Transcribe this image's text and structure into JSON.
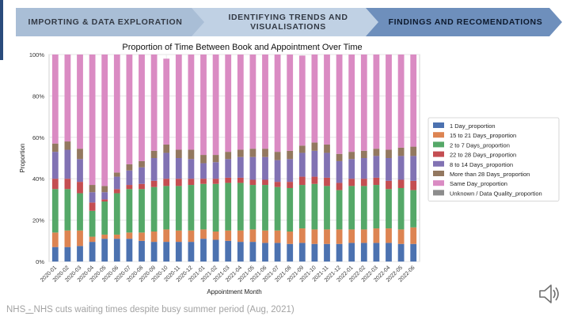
{
  "nav": {
    "steps": [
      "IMPORTING & DATA EXPLORATION",
      "IDENTIFYING TRENDS AND VISUALISATIONS",
      "FINDINGS AND RECOMENDATIONS"
    ]
  },
  "source": {
    "prefix": "NHS",
    "separator": " - ",
    "text": "NHS cuts waiting times despite busy summer period (Aug, 2021)"
  },
  "icons": {
    "speaker": "speaker-icon"
  },
  "chart_data": {
    "type": "bar",
    "stacked": true,
    "title": "Proportion of Time Between Book and Appointment Over Time",
    "xlabel": "Appointment Month",
    "ylabel": "Proportion",
    "ylim": [
      0,
      100
    ],
    "yticks": [
      "0%",
      "20%",
      "40%",
      "60%",
      "80%",
      "100%"
    ],
    "grid": true,
    "legend_position": "right",
    "categories": [
      "2020-01",
      "2020-02",
      "2020-03",
      "2020-04",
      "2020-05",
      "2020-06",
      "2020-07",
      "2020-08",
      "2020-09",
      "2020-10",
      "2020-11",
      "2020-12",
      "2021-01",
      "2021-02",
      "2021-03",
      "2021-04",
      "2021-05",
      "2021-06",
      "2021-07",
      "2021-08",
      "2021-09",
      "2021-10",
      "2021-11",
      "2021-12",
      "2022-01",
      "2022-02",
      "2022-03",
      "2022-04",
      "2022-05",
      "2022-06"
    ],
    "series": [
      {
        "name": "1 Day_proportion",
        "color": "#4c72b0",
        "values": [
          7,
          7,
          7.5,
          9.5,
          11,
          11,
          11,
          10,
          9.5,
          9.5,
          9.5,
          9.5,
          11,
          10.5,
          10,
          9.5,
          9.5,
          9,
          9,
          8.5,
          9,
          8.5,
          8.5,
          8.5,
          9,
          9,
          9,
          9,
          8.5,
          8.5
        ]
      },
      {
        "name": "15  to 21 Days_proportion",
        "color": "#dd8452",
        "values": [
          7,
          8,
          7.5,
          2.5,
          2,
          2,
          3,
          4,
          5,
          6,
          5.5,
          5.5,
          4.5,
          4,
          5,
          5.5,
          6,
          6,
          6,
          6,
          7,
          7,
          7,
          7,
          6.5,
          6.5,
          7,
          7,
          7,
          8
        ]
      },
      {
        "name": "2 to 7 Days_proportion",
        "color": "#55a868",
        "values": [
          21,
          20,
          18,
          12.5,
          16,
          20,
          21,
          21,
          21.5,
          21,
          21.5,
          22,
          22,
          23,
          23,
          23,
          21.5,
          22,
          21,
          21,
          21,
          22,
          21,
          19,
          21,
          21,
          21,
          19,
          20,
          18
        ]
      },
      {
        "name": "22  to 28 Days_proportion",
        "color": "#c44e52",
        "values": [
          5,
          5,
          5.5,
          4,
          1,
          2,
          2,
          2.5,
          3,
          3.5,
          3.5,
          3,
          2.5,
          2.5,
          2.5,
          2.5,
          2.5,
          2.5,
          2.5,
          3,
          4,
          3.5,
          4,
          3.5,
          3.5,
          3.5,
          3.5,
          4,
          4,
          4.5
        ]
      },
      {
        "name": "8  to 14 Days_proportion",
        "color": "#8172b3",
        "values": [
          13,
          14,
          11,
          5,
          3.5,
          6,
          7,
          8,
          11,
          12.5,
          10,
          9.5,
          7.5,
          8,
          9,
          10,
          11,
          11,
          10.5,
          11,
          11.5,
          12.5,
          12,
          10.5,
          9.5,
          10,
          10.5,
          11,
          11.5,
          12
        ]
      },
      {
        "name": "More than 28 Days_proportion",
        "color": "#937860",
        "values": [
          4,
          4,
          5,
          3.5,
          3,
          2,
          3,
          3,
          3.5,
          4,
          4,
          4.5,
          4,
          3.5,
          3.5,
          3.5,
          4,
          4,
          4,
          4,
          3.5,
          4,
          4,
          3.5,
          3.5,
          3.5,
          3.5,
          4,
          4,
          4.5
        ]
      },
      {
        "name": "Same Day_proportion",
        "color": "#da8bc3",
        "values": [
          43,
          42,
          45.5,
          63,
          63.5,
          57,
          53,
          51.5,
          46.5,
          41.5,
          46,
          46,
          48.5,
          48.5,
          47,
          46,
          45.5,
          45.5,
          47,
          46.5,
          43.5,
          42.5,
          43.5,
          48,
          47,
          46.5,
          45.5,
          46,
          45,
          44.5
        ]
      },
      {
        "name": "Unknown / Data Quality_proportion",
        "color": "#8c8c8c",
        "values": [
          0,
          0,
          0,
          0,
          0,
          0,
          0,
          0,
          0,
          0,
          0,
          0,
          0,
          0,
          0,
          0,
          0,
          0,
          0,
          0,
          0,
          0,
          0,
          0,
          0,
          0,
          0,
          0,
          0,
          0
        ]
      }
    ]
  }
}
